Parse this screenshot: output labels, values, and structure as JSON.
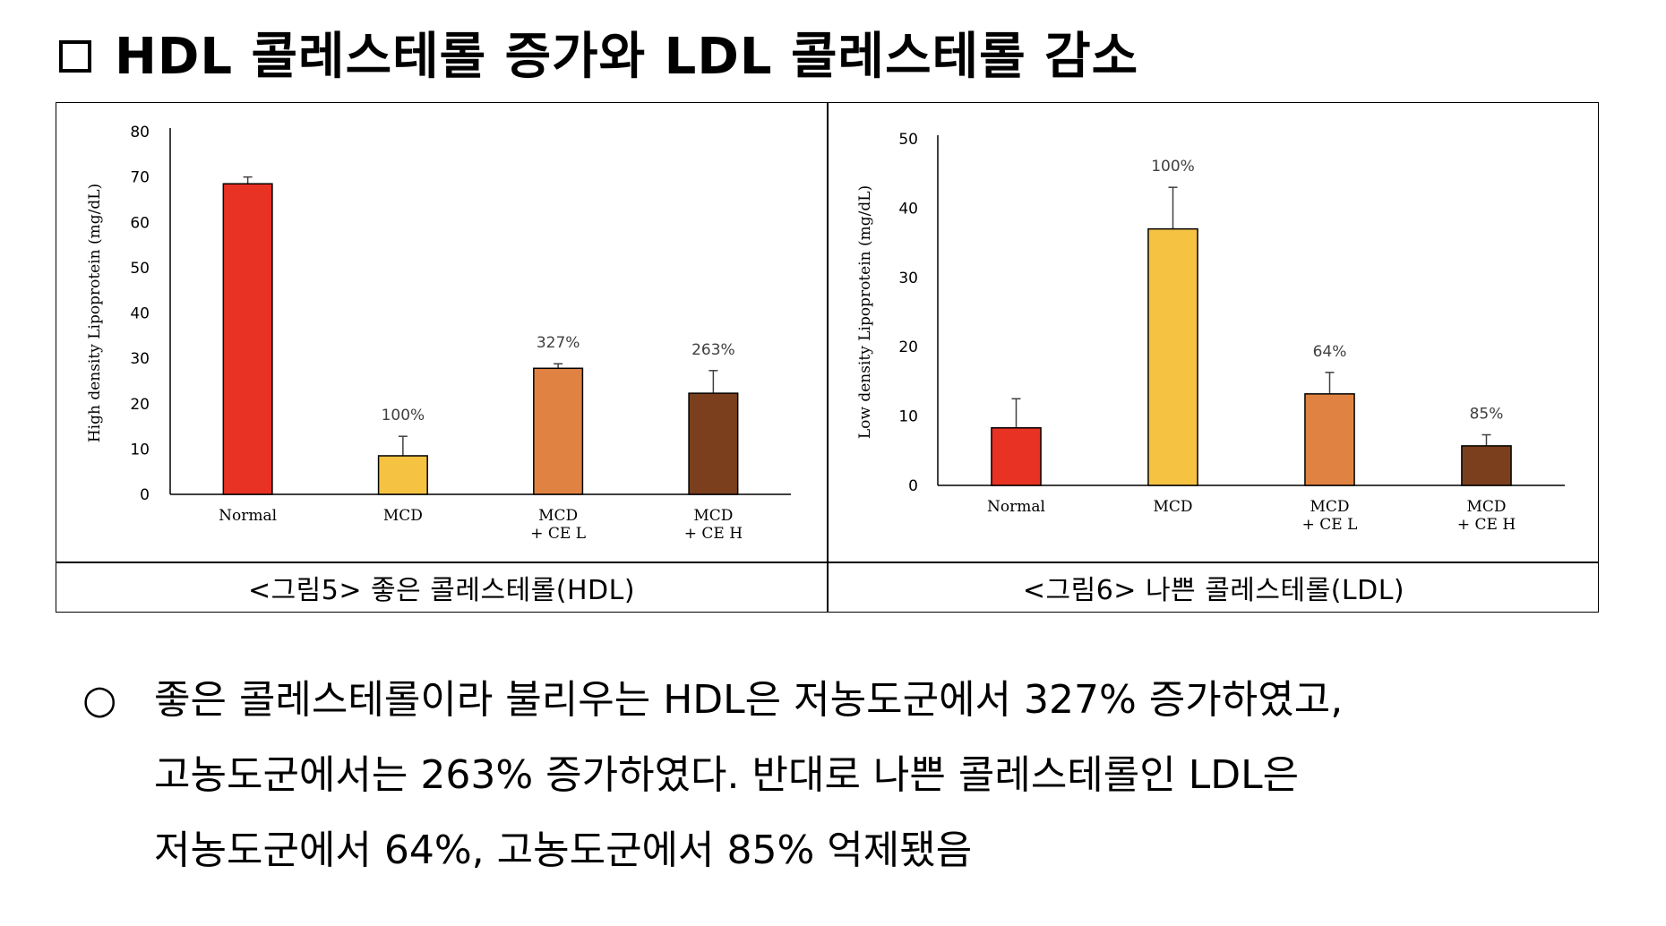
{
  "heading": {
    "marker": "□",
    "text": "HDL 콜레스테롤 증가와 LDL 콜레스테롤 감소"
  },
  "captions": {
    "left": "<그림5> 좋은 콜레스테롤(HDL)",
    "right": "<그림6> 나쁜 콜레스테롤(LDL)"
  },
  "body": {
    "bullet": "○",
    "line1": "좋은 콜레스테롤이라 불리우는 HDL은 저농도군에서 327% 증가하였고,",
    "line2": "고농도군에서는 263% 증가하였다. 반대로 나쁜 콜레스테롤인 LDL은",
    "line3": "저농도군에서 64%, 고농도군에서 85% 억제됐음"
  },
  "chart_data": [
    {
      "type": "bar",
      "ylabel": "High density Lipoprotein (mg/dL)",
      "ylim": [
        0,
        80
      ],
      "yticks": [
        0,
        10,
        20,
        30,
        40,
        50,
        60,
        70,
        80
      ],
      "categories": [
        [
          "Normal"
        ],
        [
          "MCD"
        ],
        [
          "MCD",
          "+ CE L"
        ],
        [
          "MCD",
          "+ CE H"
        ]
      ],
      "values": [
        68.5,
        8.5,
        27.8,
        22.3
      ],
      "errors": [
        1.5,
        4.3,
        1.0,
        5.0
      ],
      "labels": [
        "",
        "100%",
        "327%",
        "263%"
      ],
      "colors": [
        "#e83223",
        "#f5c242",
        "#e08242",
        "#7b3f1d"
      ]
    },
    {
      "type": "bar",
      "ylabel": "Low density Lipoprotein (mg/dL)",
      "ylim": [
        0,
        50
      ],
      "yticks": [
        0,
        10,
        20,
        30,
        40,
        50
      ],
      "categories": [
        [
          "Normal"
        ],
        [
          "MCD"
        ],
        [
          "MCD",
          "+ CE L"
        ],
        [
          "MCD",
          "+ CE H"
        ]
      ],
      "values": [
        8.3,
        37.0,
        13.2,
        5.7
      ],
      "errors": [
        4.2,
        6.0,
        3.1,
        1.6
      ],
      "labels": [
        "",
        "100%",
        "64%",
        "85%"
      ],
      "colors": [
        "#e83223",
        "#f5c242",
        "#e08242",
        "#7b3f1d"
      ]
    }
  ]
}
